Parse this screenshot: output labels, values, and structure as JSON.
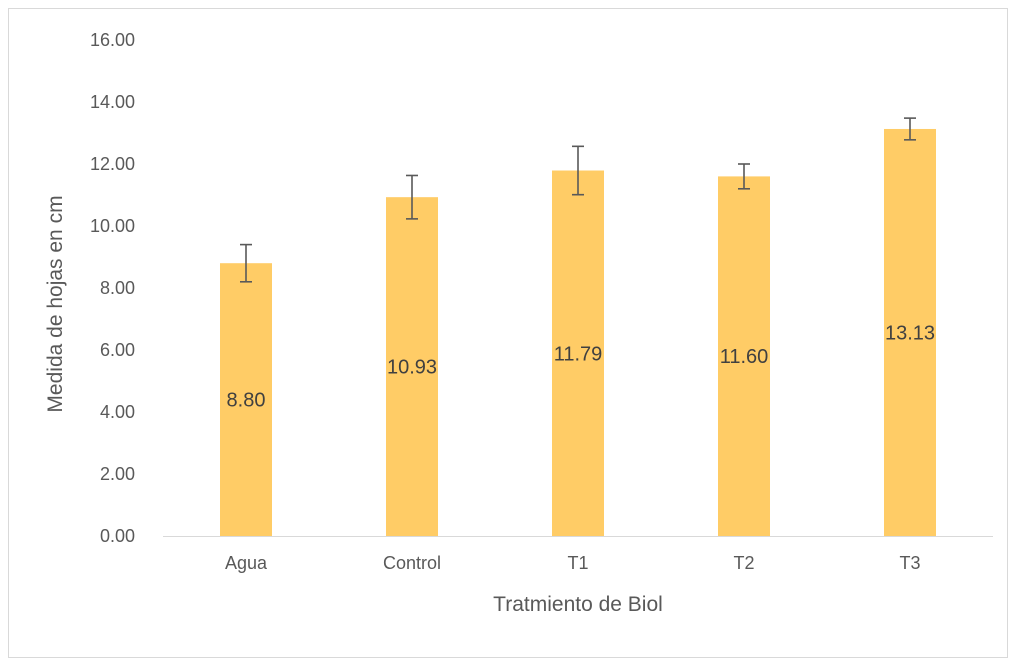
{
  "chart_data": {
    "type": "bar",
    "categories": [
      "Agua",
      "Control",
      "T1",
      "T2",
      "T3"
    ],
    "values": [
      8.8,
      10.93,
      11.79,
      11.6,
      13.13
    ],
    "value_labels": [
      "8.80",
      "10.93",
      "11.79",
      "11.60",
      "13.13"
    ],
    "error": [
      0.6,
      0.7,
      0.78,
      0.4,
      0.35
    ],
    "xlabel": "Tratmiento de Biol",
    "ylabel": "Medida de hojas en cm",
    "ylim": [
      0,
      16
    ],
    "ytick_labels": [
      "0.00",
      "2.00",
      "4.00",
      "6.00",
      "8.00",
      "10.00",
      "12.00",
      "14.00",
      "16.00"
    ],
    "grid": false,
    "legend": "none",
    "colors": {
      "bar": "#FFCC66",
      "error_bar": "#595959",
      "axis": "#D9D9D9"
    }
  }
}
